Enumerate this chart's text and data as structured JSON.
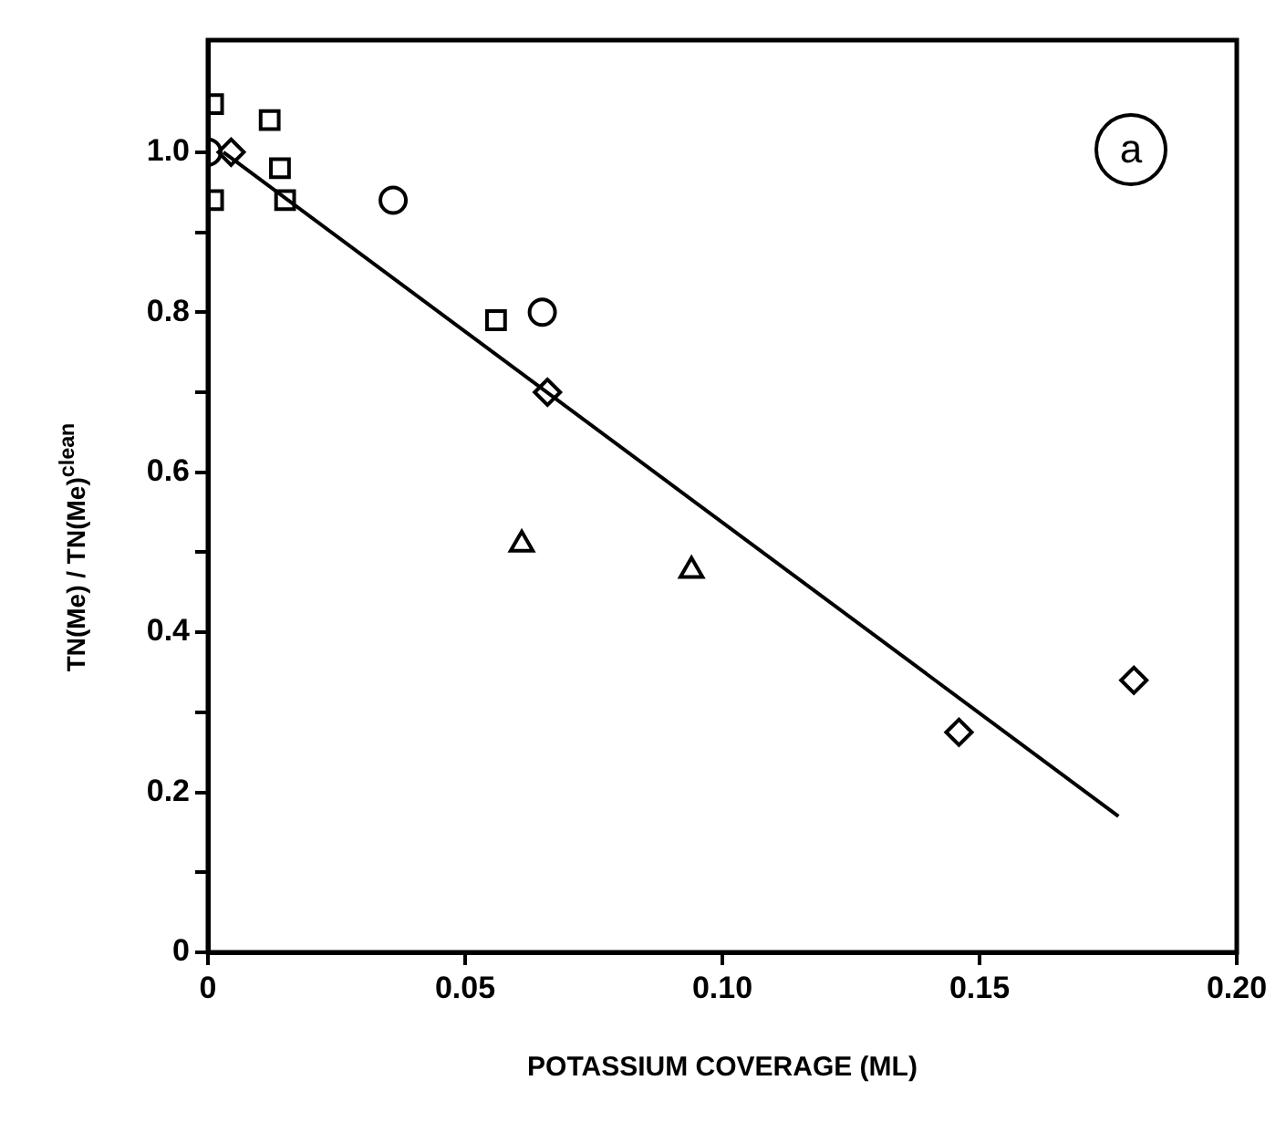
{
  "chart_data": {
    "type": "scatter",
    "xlabel": "POTASSIUM COVERAGE (ML)",
    "ylabel": "TN(Me) / TN(Me)$^{clean}$",
    "annotations": [
      "a"
    ],
    "xlim": [
      0,
      0.2
    ],
    "xticks": [
      0,
      0.05,
      {
        "value": 0.1,
        "label": "0.10"
      },
      0.15,
      {
        "value": 0.2,
        "label": "0.20"
      }
    ],
    "ylim": [
      0,
      1.14
    ],
    "yticks": [
      0,
      {
        "value": 0.1,
        "label": null
      },
      0.2,
      {
        "value": 0.3,
        "label": null
      },
      0.4,
      {
        "value": 0.5,
        "label": null
      },
      0.6,
      {
        "value": 0.7,
        "label": null
      },
      0.8,
      {
        "value": 0.9,
        "label": null
      },
      {
        "value": 1.0,
        "label": "1.0"
      }
    ],
    "grid": false,
    "legend": false,
    "series": [
      {
        "color": "#000000",
        "marker": "square",
        "x": [
          0.001,
          0.001,
          0.012,
          0.014,
          0.015,
          0.056
        ],
        "values": [
          1.06,
          0.94,
          1.04,
          0.98,
          0.94,
          0.79
        ]
      },
      {
        "color": "#000000",
        "marker": "circle",
        "x": [
          0,
          0.036,
          0.065
        ],
        "values": [
          1.0,
          0.94,
          0.8
        ]
      },
      {
        "color": "#000000",
        "marker": "diamond",
        "x": [
          0.0045,
          0.066,
          0.146,
          0.18
        ],
        "values": [
          1.0,
          0.7,
          0.275,
          0.34
        ]
      },
      {
        "color": "#000000",
        "marker": "triangle",
        "x": [
          0.061,
          0.094
        ],
        "values": [
          0.51,
          0.477
        ]
      },
      {
        "type": "line",
        "color": "#000000",
        "marker": "none",
        "line_style": "solid",
        "x": [
          0.003,
          0.177
        ],
        "values": [
          1.0,
          0.17
        ]
      }
    ]
  }
}
